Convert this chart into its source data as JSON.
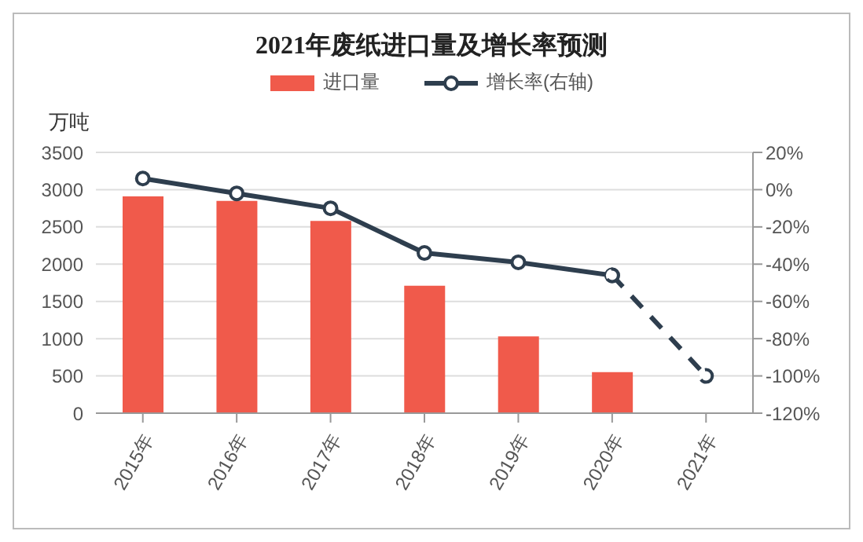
{
  "chart_data": {
    "type": "bar",
    "title": "2021年废纸进口量及增长率预测",
    "ylabel": "万吨",
    "categories": [
      "2015年",
      "2016年",
      "2017年",
      "2018年",
      "2019年",
      "2020年",
      "2021年"
    ],
    "series": [
      {
        "name": "进口量",
        "color": "#f05a4b",
        "values": [
          2910,
          2850,
          2580,
          1710,
          1030,
          550,
          null
        ]
      },
      {
        "name": "增长率(右轴)",
        "type": "line",
        "axis": "y2",
        "color": "#2e3e4e",
        "marker": "circle",
        "line_style": "solid",
        "values": [
          6,
          -2,
          -10,
          -34,
          -39,
          -46,
          null
        ]
      },
      {
        "type": "line",
        "axis": "y2",
        "color": "#2e3e4e",
        "marker": "circle",
        "line_style": "dashed",
        "values": [
          null,
          null,
          null,
          null,
          null,
          -46,
          -100
        ]
      }
    ],
    "ylim": [
      0,
      3500
    ],
    "yticks": [
      0,
      500,
      1000,
      1500,
      2000,
      2500,
      3000,
      3500
    ],
    "y2lim": [
      -120,
      20
    ],
    "y2ticks": [
      {
        "value": -120,
        "label": "-120%"
      },
      {
        "value": -100,
        "label": "-100%"
      },
      {
        "value": -80,
        "label": "-80%"
      },
      {
        "value": -60,
        "label": "-60%"
      },
      {
        "value": -40,
        "label": "-40%"
      },
      {
        "value": -20,
        "label": "-20%"
      },
      {
        "value": 0,
        "label": "0%"
      },
      {
        "value": 20,
        "label": "20%"
      }
    ],
    "grid": "y",
    "legend": "top"
  }
}
